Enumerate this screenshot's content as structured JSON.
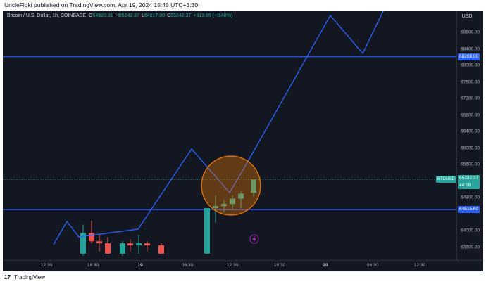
{
  "header": {
    "published_text": "UncleFloki published on TradingView.com, Apr 19, 2024 15:45 UTC+3:30"
  },
  "legend": {
    "symbol_text": "Bitcoin / U.S. Dollar, 1h, COINBASE",
    "o_key": "O",
    "o_val": "64920.31",
    "h_key": "H",
    "h_val": "65242.37",
    "l_key": "L",
    "l_val": "64817.90",
    "c_key": "C",
    "c_val": "65242.37",
    "change": "+313.86 (+0.48%)"
  },
  "price_axis": {
    "currency": "USD",
    "ticks": [
      "68800.00",
      "68400.00",
      "68000.00",
      "67600.00",
      "67200.00",
      "66800.00",
      "66400.00",
      "66000.00",
      "65600.00",
      "64800.00",
      "64000.00",
      "63600.00"
    ],
    "tick_values": [
      68800,
      68400,
      68000,
      67600,
      67200,
      66800,
      66400,
      66000,
      65600,
      64800,
      64000,
      63600
    ]
  },
  "time_axis": {
    "ticks": [
      {
        "label": "12:30",
        "bold": false
      },
      {
        "label": "18:30",
        "bold": false
      },
      {
        "label": "19",
        "bold": true
      },
      {
        "label": "06:30",
        "bold": false
      },
      {
        "label": "12:30",
        "bold": false
      },
      {
        "label": "18:30",
        "bold": false
      },
      {
        "label": "20",
        "bold": true
      },
      {
        "label": "06:30",
        "bold": false
      },
      {
        "label": "12:30",
        "bold": false
      }
    ]
  },
  "horizontal_lines": [
    {
      "price": 68208,
      "label": "68208.00"
    },
    {
      "price": 64515.6,
      "label": "64515.60"
    }
  ],
  "current_price": {
    "symbol": "BTCUSD",
    "price_label": "65242.37",
    "countdown": "44:16",
    "price": 65242.37
  },
  "candles": [
    {
      "o": 63450,
      "h": 64150,
      "l": 63400,
      "c": 63950
    },
    {
      "o": 63950,
      "h": 64250,
      "l": 63700,
      "c": 63750
    },
    {
      "o": 63750,
      "h": 63900,
      "l": 63500,
      "c": 63700
    },
    {
      "o": 63700,
      "h": 63850,
      "l": 63450,
      "c": 63450
    },
    {
      "o": 63450,
      "h": 63750,
      "l": 63400,
      "c": 63700
    },
    {
      "o": 63700,
      "h": 63800,
      "l": 63500,
      "c": 63650
    },
    {
      "o": 63650,
      "h": 63900,
      "l": 63450,
      "c": 63700
    },
    {
      "o": 63700,
      "h": 63750,
      "l": 63500,
      "c": 63650
    },
    {
      "o": 63650,
      "h": 63700,
      "l": 63450,
      "c": 63450
    },
    {
      "o": 63450,
      "h": 64550,
      "l": 63450,
      "c": 64550
    },
    {
      "o": 64550,
      "h": 64850,
      "l": 64200,
      "c": 64600
    },
    {
      "o": 64600,
      "h": 64750,
      "l": 64450,
      "c": 64650
    },
    {
      "o": 64650,
      "h": 64850,
      "l": 64500,
      "c": 64780
    },
    {
      "o": 64780,
      "h": 64950,
      "l": 64550,
      "c": 64900
    },
    {
      "o": 64920.31,
      "h": 65242.37,
      "l": 64817.9,
      "c": 65242.37
    }
  ],
  "colors": {
    "background": "#131722",
    "up": "#26a69a",
    "down": "#ef5350",
    "drawing": "#2962ff",
    "highlight_circle": "#f57c00"
  },
  "icons": {
    "flash_icon": "lightning-bolt"
  },
  "footer": {
    "logo_glyph": "17",
    "brand": "TradingView"
  }
}
